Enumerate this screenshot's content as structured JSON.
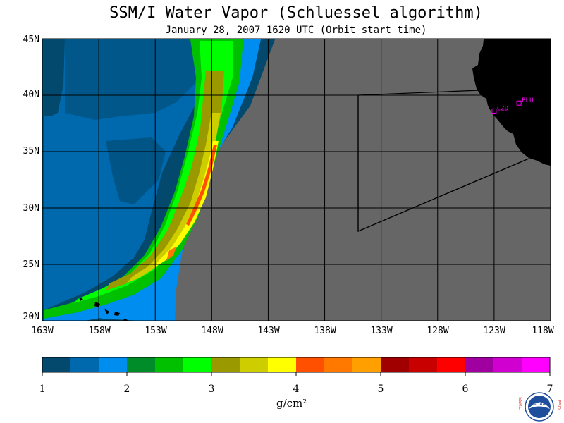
{
  "title": "SSM/I Water Vapor (Schluessel algorithm)",
  "subtitle": "January 28, 2007  1620 UTC  (Orbit start time)",
  "lat_labels": [
    "45N",
    "40N",
    "35N",
    "30N",
    "25N",
    "20N"
  ],
  "lon_labels": [
    "163W",
    "158W",
    "153W",
    "148W",
    "143W",
    "138W",
    "133W",
    "128W",
    "123W",
    "118W"
  ],
  "stations": [
    {
      "name": "CZD",
      "lon": -123.0,
      "lat": 38.6
    },
    {
      "name": "BLU",
      "lon": -120.8,
      "lat": 39.3
    }
  ],
  "colorbar": {
    "colors": [
      "#02496d",
      "#0068ac",
      "#008df0",
      "#008c28",
      "#00c000",
      "#00ff00",
      "#9a9a00",
      "#cdcd00",
      "#ffff00",
      "#ff5000",
      "#ff7800",
      "#ffa000",
      "#a00000",
      "#c80000",
      "#ff0000",
      "#a000a0",
      "#d000d0",
      "#ff00ff"
    ],
    "tick_labels": [
      "1",
      "2",
      "3",
      "4",
      "5",
      "6",
      "7"
    ],
    "units": "g/cm²"
  },
  "logo_text": {
    "left": "ESRL",
    "right": "PSD",
    "center": "NOAA"
  },
  "colors": {
    "land_mask": "#000000",
    "no_data": "#666666",
    "station_marker": "#ff00ff"
  }
}
